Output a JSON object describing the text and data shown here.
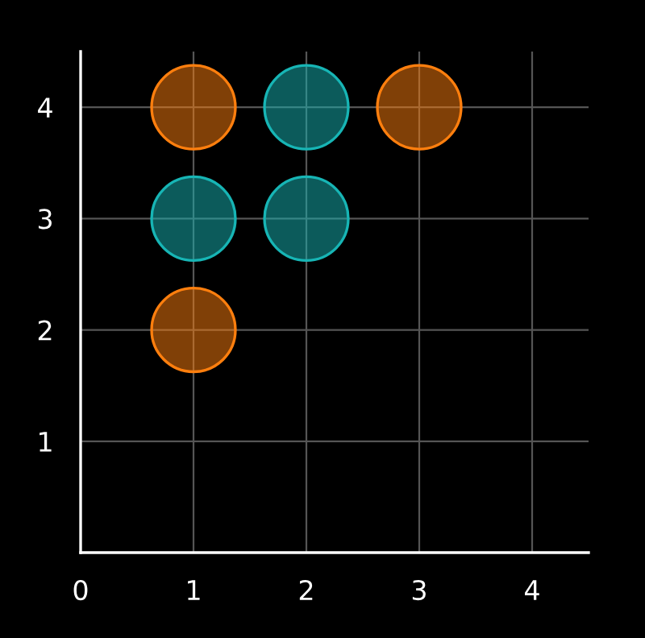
{
  "chart_data": {
    "type": "scatter",
    "series": [
      {
        "color": "#ff7f0e",
        "x": [
          1,
          3,
          1
        ],
        "values": [
          4,
          4,
          2
        ]
      },
      {
        "color": "#17b5b5",
        "x": [
          2,
          1,
          2
        ],
        "values": [
          4,
          3,
          3
        ]
      }
    ],
    "xlim": [
      0,
      4.5
    ],
    "ylim": [
      0,
      4.5
    ],
    "xticks": [
      0,
      1,
      2,
      3,
      4
    ],
    "yticks": [
      {
        "value": 0,
        "label": null
      },
      1,
      2,
      3,
      4
    ],
    "grid": true,
    "marker": "circle"
  }
}
